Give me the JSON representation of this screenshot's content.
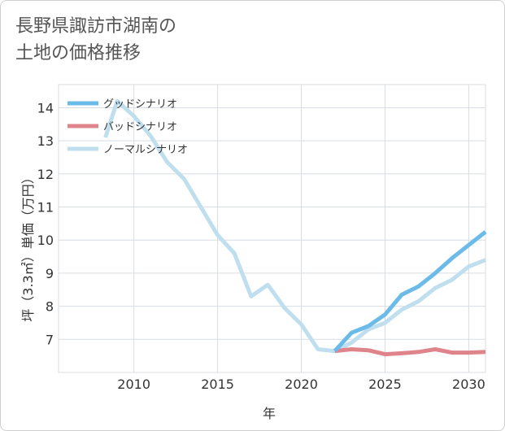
{
  "title_line1": "長野県諏訪市湖南の",
  "title_line2": "土地の価格推移",
  "chart_data": {
    "type": "line",
    "xlabel": "年",
    "ylabel": "坪（3.3㎡）単価（万円）",
    "xlim": [
      2005.5,
      2031
    ],
    "ylim": [
      6,
      14.7
    ],
    "x_ticks": [
      2010,
      2015,
      2020,
      2025,
      2030
    ],
    "y_ticks": [
      7,
      8,
      9,
      10,
      11,
      12,
      13,
      14
    ],
    "grid": true,
    "legend_position": "top-left",
    "series": [
      {
        "name": "グッドシナリオ",
        "color": "#6bbbea",
        "x": [
          2022,
          2023,
          2024,
          2025,
          2026,
          2027,
          2028,
          2029,
          2030,
          2031
        ],
        "y": [
          6.65,
          7.2,
          7.4,
          7.75,
          8.35,
          8.6,
          9.0,
          9.45,
          9.85,
          10.25
        ]
      },
      {
        "name": "バッドシナリオ",
        "color": "#e0848c",
        "x": [
          2022,
          2023,
          2024,
          2025,
          2026,
          2027,
          2028,
          2029,
          2030,
          2031
        ],
        "y": [
          6.65,
          6.7,
          6.67,
          6.55,
          6.58,
          6.62,
          6.7,
          6.6,
          6.6,
          6.62
        ]
      },
      {
        "name": "ノーマルシナリオ",
        "color": "#bfdfee",
        "x": [
          2008.3,
          2009,
          2010,
          2011,
          2012,
          2013,
          2014,
          2015,
          2016,
          2017,
          2018,
          2019,
          2020,
          2021,
          2022,
          2023,
          2024,
          2025,
          2026,
          2027,
          2028,
          2029,
          2030,
          2031
        ],
        "y": [
          13.1,
          14.2,
          13.75,
          13.15,
          12.35,
          11.85,
          11.0,
          10.15,
          9.6,
          8.3,
          8.65,
          7.95,
          7.45,
          6.7,
          6.65,
          6.9,
          7.3,
          7.5,
          7.9,
          8.15,
          8.55,
          8.8,
          9.2,
          9.4
        ]
      }
    ]
  }
}
